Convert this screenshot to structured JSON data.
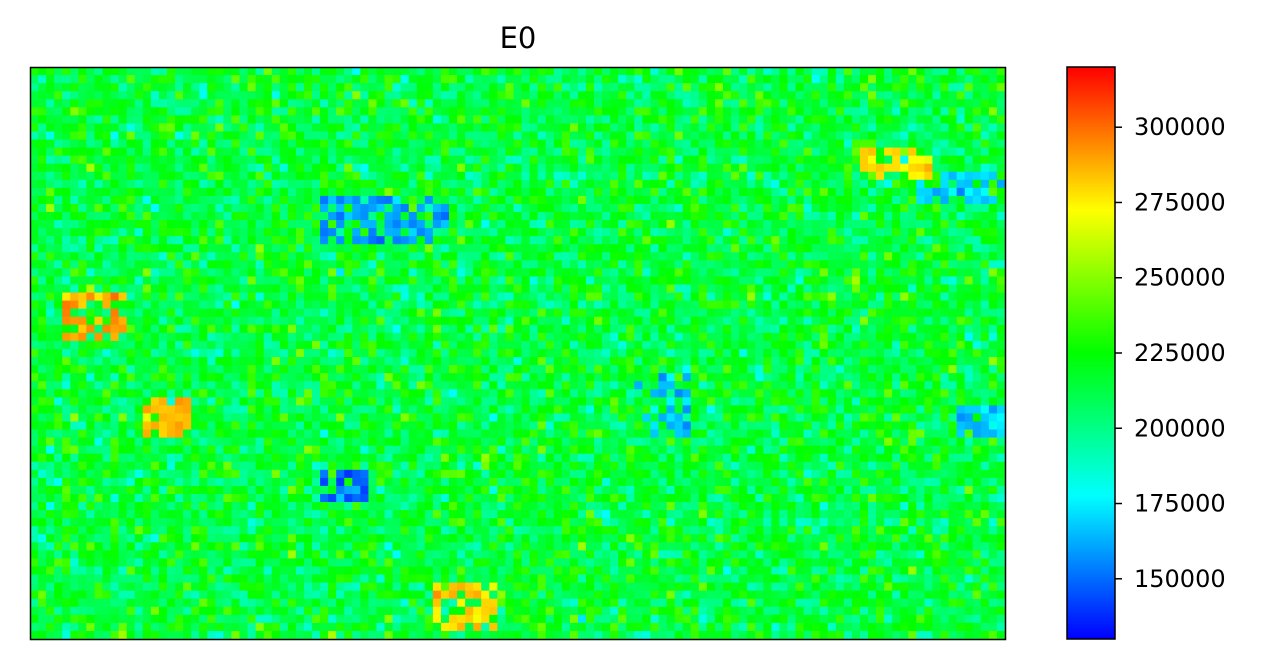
{
  "chart_data": {
    "type": "heatmap",
    "title": "E0",
    "colormap": "jet-like (blue → cyan → green → yellow → red)",
    "grid": false,
    "x_axis_ticks": "none",
    "y_axis_ticks": "none",
    "grid_dims": {
      "cols": 121,
      "rows": 71
    },
    "value_range": [
      130000,
      320000
    ],
    "typical_value": 215000,
    "colorbar": {
      "range": [
        130000,
        320000
      ],
      "ticks": [
        150000,
        175000,
        200000,
        225000,
        250000,
        275000,
        300000
      ],
      "tick_labels": [
        "150000",
        "175000",
        "200000",
        "225000",
        "250000",
        "275000",
        "300000"
      ],
      "placement": "right"
    },
    "low_value_regions": [
      {
        "x": [
          36,
          52
        ],
        "y": [
          16,
          22
        ],
        "value": 160000
      },
      {
        "x": [
          36,
          42
        ],
        "y": [
          50,
          54
        ],
        "value": 150000
      },
      {
        "x": [
          75,
          82
        ],
        "y": [
          38,
          46
        ],
        "value": 165000
      },
      {
        "x": [
          110,
          121
        ],
        "y": [
          13,
          17
        ],
        "value": 170000
      },
      {
        "x": [
          115,
          121
        ],
        "y": [
          42,
          46
        ],
        "value": 168000
      }
    ],
    "high_value_regions": [
      {
        "x": [
          4,
          12
        ],
        "y": [
          28,
          34
        ],
        "value": 290000
      },
      {
        "x": [
          14,
          20
        ],
        "y": [
          41,
          46
        ],
        "value": 285000
      },
      {
        "x": [
          103,
          112
        ],
        "y": [
          10,
          14
        ],
        "value": 280000
      },
      {
        "x": [
          50,
          58
        ],
        "y": [
          64,
          70
        ],
        "value": 280000
      }
    ]
  }
}
